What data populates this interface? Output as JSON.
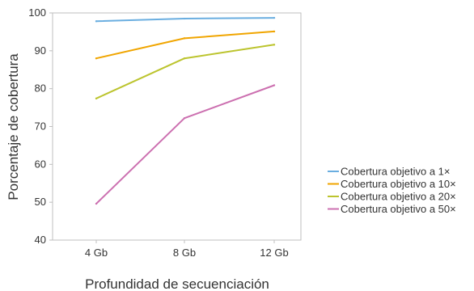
{
  "chart_data": {
    "type": "line",
    "title": "",
    "xlabel": "Profundidad de secuenciación",
    "ylabel": "Porcentaje de cobertura",
    "categories": [
      "4 Gb",
      "8 Gb",
      "12 Gb"
    ],
    "ylim": [
      40,
      100
    ],
    "yticks": [
      "40",
      "50",
      "60",
      "70",
      "80",
      "90",
      "100"
    ],
    "grid": false,
    "legend_position": "right",
    "series": [
      {
        "name": "Cobertura objetivo a 1×",
        "color": "#6aaee0",
        "values": [
          97.8,
          98.5,
          98.7
        ]
      },
      {
        "name": "Cobertura objetivo a 10×",
        "color": "#f0a500",
        "values": [
          88.0,
          93.3,
          95.1
        ]
      },
      {
        "name": "Cobertura objetivo a 20×",
        "color": "#bcc42e",
        "values": [
          77.4,
          88.0,
          91.6
        ]
      },
      {
        "name": "Cobertura objetivo a 50×",
        "color": "#cc70b0",
        "values": [
          49.6,
          72.2,
          80.9
        ]
      }
    ]
  }
}
